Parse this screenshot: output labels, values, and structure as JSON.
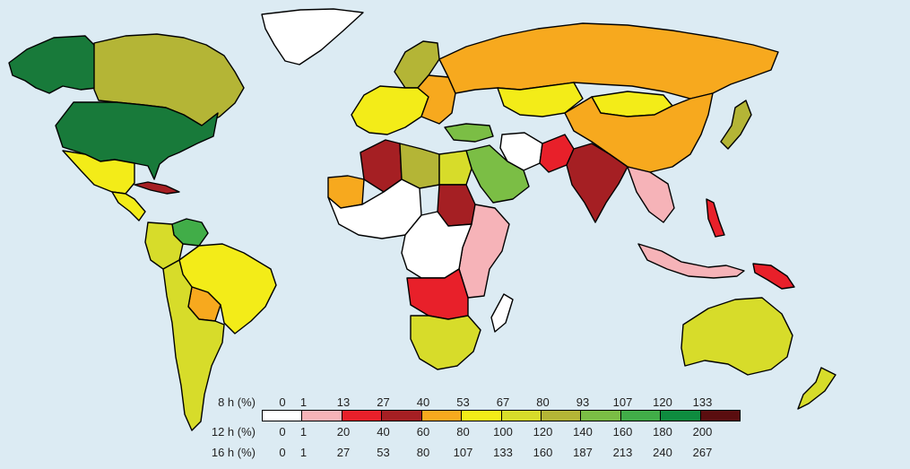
{
  "legend": {
    "rows": [
      {
        "label": "8 h (%)",
        "ticks": [
          "0",
          "1",
          "13",
          "27",
          "40",
          "53",
          "67",
          "80",
          "93",
          "107",
          "120",
          "133"
        ]
      },
      {
        "label": "12 h (%)",
        "ticks": [
          "0",
          "1",
          "20",
          "40",
          "60",
          "80",
          "100",
          "120",
          "140",
          "160",
          "180",
          "200"
        ]
      },
      {
        "label": "16 h (%)",
        "ticks": [
          "0",
          "1",
          "27",
          "53",
          "80",
          "107",
          "133",
          "160",
          "187",
          "213",
          "240",
          "267"
        ]
      }
    ],
    "colors": [
      "#ffffff",
      "#f6b3b8",
      "#e8202a",
      "#a51f23",
      "#f7a91e",
      "#f3ec18",
      "#d7dc2a",
      "#b4b536",
      "#7bbe45",
      "#41ad48",
      "#0e8c3f",
      "#5a0d0f"
    ]
  },
  "map": {
    "ocean_color": "#dcebf3",
    "regions": [
      {
        "name": "alaska",
        "color": "#187a3a"
      },
      {
        "name": "canada",
        "color": "#b4b536"
      },
      {
        "name": "greenland",
        "color": "#ffffff"
      },
      {
        "name": "usa",
        "color": "#187a3a"
      },
      {
        "name": "mexico",
        "color": "#f3ec18"
      },
      {
        "name": "central-america",
        "color": "#f3ec18"
      },
      {
        "name": "cuba",
        "color": "#a51f23"
      },
      {
        "name": "venezuela",
        "color": "#41ad48"
      },
      {
        "name": "colombia",
        "color": "#d7dc2a"
      },
      {
        "name": "brazil",
        "color": "#f3ec18"
      },
      {
        "name": "bolivia",
        "color": "#f7a91e"
      },
      {
        "name": "argentina-chile",
        "color": "#d7dc2a"
      },
      {
        "name": "western-europe",
        "color": "#f3ec18"
      },
      {
        "name": "scandinavia",
        "color": "#b4b536"
      },
      {
        "name": "eastern-europe",
        "color": "#f7a91e"
      },
      {
        "name": "russia",
        "color": "#f7a91e"
      },
      {
        "name": "turkey",
        "color": "#7bbe45"
      },
      {
        "name": "kazakhstan",
        "color": "#f3ec18"
      },
      {
        "name": "mongolia",
        "color": "#f3ec18"
      },
      {
        "name": "china",
        "color": "#f7a91e"
      },
      {
        "name": "japan",
        "color": "#b4b536"
      },
      {
        "name": "algeria",
        "color": "#a51f23"
      },
      {
        "name": "libya",
        "color": "#b4b536"
      },
      {
        "name": "egypt",
        "color": "#d7dc2a"
      },
      {
        "name": "mauritania",
        "color": "#f7a91e"
      },
      {
        "name": "west-africa",
        "color": "#ffffff"
      },
      {
        "name": "sudan",
        "color": "#a51f23"
      },
      {
        "name": "central-africa",
        "color": "#ffffff"
      },
      {
        "name": "east-africa",
        "color": "#f6b3b8"
      },
      {
        "name": "angola",
        "color": "#e8202a"
      },
      {
        "name": "southern-africa",
        "color": "#d7dc2a"
      },
      {
        "name": "madagascar",
        "color": "#ffffff"
      },
      {
        "name": "saudi-arabia",
        "color": "#7bbe45"
      },
      {
        "name": "iran",
        "color": "#ffffff"
      },
      {
        "name": "pakistan",
        "color": "#e8202a"
      },
      {
        "name": "india",
        "color": "#a51f23"
      },
      {
        "name": "southeast-asia",
        "color": "#f6b3b8"
      },
      {
        "name": "indonesia",
        "color": "#f6b3b8"
      },
      {
        "name": "philippines",
        "color": "#e8202a"
      },
      {
        "name": "papua-new-guinea",
        "color": "#e8202a"
      },
      {
        "name": "australia",
        "color": "#d7dc2a"
      },
      {
        "name": "new-zealand",
        "color": "#d7dc2a"
      }
    ]
  }
}
